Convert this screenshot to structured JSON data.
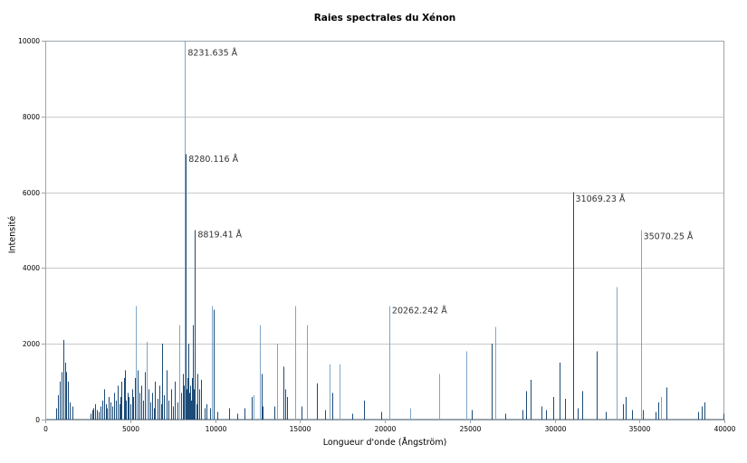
{
  "chart_data": {
    "type": "bar",
    "title": "Raies spectrales du Xénon",
    "xlabel": "Longueur d'onde (Ångström)",
    "ylabel": "Intensité",
    "xlim": [
      0,
      40000
    ],
    "ylim": [
      0,
      10000
    ],
    "x_ticks": [
      0,
      5000,
      10000,
      15000,
      20000,
      25000,
      30000,
      35000,
      40000
    ],
    "y_ticks": [
      0,
      2000,
      4000,
      6000,
      8000,
      10000
    ],
    "grid": "horizontal",
    "legend_position": "none",
    "colors": {
      "line_dark": "#1c4b77",
      "line_light": "#7fa6c9",
      "grid": "#c9c9c9",
      "axis": "#9aa5ad",
      "annotation_text": "#333333",
      "background": "#ffffff"
    },
    "annotations": [
      {
        "text": "8231.635 Å",
        "x": 8231.635,
        "y": 9750
      },
      {
        "text": "8280.116 Å",
        "x": 8280.116,
        "y": 6950
      },
      {
        "text": "8819.41 Å",
        "x": 8819.41,
        "y": 4950
      },
      {
        "text": "20262.242 Å",
        "x": 20262.242,
        "y": 2950
      },
      {
        "text": "31069.23 Å",
        "x": 31069.23,
        "y": 5900
      },
      {
        "text": "35070.25 Å",
        "x": 35070.25,
        "y": 4900
      }
    ],
    "series": [
      {
        "name": "raies",
        "point_format": [
          "longueur_onde_angstrom",
          "intensite",
          "teinte"
        ],
        "points": [
          [
            620,
            300,
            "d"
          ],
          [
            740,
            650,
            "d"
          ],
          [
            860,
            1000,
            "d"
          ],
          [
            950,
            1250,
            "d"
          ],
          [
            1070,
            2100,
            "d"
          ],
          [
            1165,
            1500,
            "d"
          ],
          [
            1250,
            1250,
            "d"
          ],
          [
            1340,
            1000,
            "d"
          ],
          [
            1440,
            450,
            "d"
          ],
          [
            1605,
            350,
            "d"
          ],
          [
            2650,
            150,
            "d"
          ],
          [
            2750,
            250,
            "d"
          ],
          [
            2850,
            300,
            "d"
          ],
          [
            2950,
            400,
            "d"
          ],
          [
            3050,
            250,
            "d"
          ],
          [
            3150,
            200,
            "d"
          ],
          [
            3250,
            350,
            "d"
          ],
          [
            3350,
            500,
            "d"
          ],
          [
            3450,
            800,
            "d"
          ],
          [
            3550,
            400,
            "d"
          ],
          [
            3650,
            300,
            "d"
          ],
          [
            3750,
            600,
            "d"
          ],
          [
            3850,
            450,
            "d"
          ],
          [
            3950,
            350,
            "d"
          ],
          [
            4050,
            700,
            "d"
          ],
          [
            4150,
            500,
            "d"
          ],
          [
            4250,
            900,
            "d"
          ],
          [
            4350,
            400,
            "d"
          ],
          [
            4450,
            600,
            "d"
          ],
          [
            4501,
            1000,
            "d"
          ],
          [
            4624,
            1100,
            "d"
          ],
          [
            4671,
            1300,
            "d"
          ],
          [
            4750,
            500,
            "d"
          ],
          [
            4850,
            700,
            "d"
          ],
          [
            4916,
            600,
            "d"
          ],
          [
            5030,
            400,
            "d"
          ],
          [
            5125,
            800,
            "d"
          ],
          [
            5190,
            600,
            "d"
          ],
          [
            5292,
            1100,
            "d"
          ],
          [
            5330,
            3000,
            "l"
          ],
          [
            5419,
            1300,
            "d"
          ],
          [
            5550,
            700,
            "d"
          ],
          [
            5650,
            900,
            "d"
          ],
          [
            5750,
            500,
            "d"
          ],
          [
            5850,
            1250,
            "d"
          ],
          [
            5976,
            2050,
            "l"
          ],
          [
            6100,
            800,
            "d"
          ],
          [
            6180,
            450,
            "d"
          ],
          [
            6280,
            700,
            "d"
          ],
          [
            6380,
            300,
            "d"
          ],
          [
            6470,
            1000,
            "d"
          ],
          [
            6600,
            550,
            "d"
          ],
          [
            6700,
            900,
            "d"
          ],
          [
            6800,
            400,
            "d"
          ],
          [
            6882,
            2000,
            "d"
          ],
          [
            7000,
            650,
            "d"
          ],
          [
            7120,
            1300,
            "d"
          ],
          [
            7250,
            500,
            "d"
          ],
          [
            7390,
            800,
            "d"
          ],
          [
            7500,
            350,
            "d"
          ],
          [
            7650,
            1000,
            "d"
          ],
          [
            7790,
            450,
            "d"
          ],
          [
            7887,
            2500,
            "l"
          ],
          [
            8000,
            700,
            "d"
          ],
          [
            8100,
            1200,
            "d"
          ],
          [
            8170,
            900,
            "d"
          ],
          [
            8231.635,
            10000,
            "l"
          ],
          [
            8266,
            1500,
            "d"
          ],
          [
            8280.116,
            7000,
            "d"
          ],
          [
            8320,
            800,
            "d"
          ],
          [
            8347,
            1100,
            "d"
          ],
          [
            8409,
            2000,
            "d"
          ],
          [
            8460,
            700,
            "d"
          ],
          [
            8530,
            900,
            "d"
          ],
          [
            8576,
            500,
            "d"
          ],
          [
            8648,
            1100,
            "d"
          ],
          [
            8693,
            2500,
            "d"
          ],
          [
            8739,
            800,
            "d"
          ],
          [
            8819.41,
            5000,
            "d"
          ],
          [
            8900,
            400,
            "d"
          ],
          [
            8952,
            1200,
            "d"
          ],
          [
            9045,
            800,
            "d"
          ],
          [
            9162,
            1050,
            "d"
          ],
          [
            9380,
            300,
            "d"
          ],
          [
            9513,
            400,
            "d"
          ],
          [
            9685,
            300,
            "d"
          ],
          [
            9799.7,
            3000,
            "l"
          ],
          [
            9923.19,
            2900,
            "d"
          ],
          [
            10133,
            200,
            "d"
          ],
          [
            10838,
            300,
            "d"
          ],
          [
            11290,
            150,
            "d"
          ],
          [
            11742,
            300,
            "d"
          ],
          [
            12180,
            600,
            "d"
          ],
          [
            12257,
            650,
            "l"
          ],
          [
            12623,
            2500,
            "l"
          ],
          [
            12720,
            1200,
            "d"
          ],
          [
            12790,
            350,
            "d"
          ],
          [
            13480,
            350,
            "d"
          ],
          [
            13657,
            2000,
            "l"
          ],
          [
            14044,
            1400,
            "d"
          ],
          [
            14142,
            800,
            "d"
          ],
          [
            14240,
            600,
            "d"
          ],
          [
            14732.8,
            3000,
            "l"
          ],
          [
            15100,
            350,
            "d"
          ],
          [
            15418,
            2500,
            "l"
          ],
          [
            15980,
            950,
            "d"
          ],
          [
            16480,
            250,
            "d"
          ],
          [
            16728,
            1450,
            "l"
          ],
          [
            16900,
            700,
            "d"
          ],
          [
            17325,
            1450,
            "l"
          ],
          [
            18100,
            150,
            "d"
          ],
          [
            18788,
            500,
            "d"
          ],
          [
            19800,
            200,
            "d"
          ],
          [
            20262.242,
            3000,
            "l"
          ],
          [
            21470,
            300,
            "l"
          ],
          [
            23193,
            1200,
            "l"
          ],
          [
            24825,
            1800,
            "l"
          ],
          [
            25130,
            250,
            "d"
          ],
          [
            26269,
            2000,
            "d"
          ],
          [
            26511,
            2450,
            "l"
          ],
          [
            27100,
            150,
            "d"
          ],
          [
            28100,
            250,
            "d"
          ],
          [
            28300,
            750,
            "d"
          ],
          [
            28583,
            1050,
            "d"
          ],
          [
            29200,
            350,
            "d"
          ],
          [
            29500,
            250,
            "d"
          ],
          [
            29900,
            600,
            "d"
          ],
          [
            30270,
            1500,
            "d"
          ],
          [
            30600,
            550,
            "d"
          ],
          [
            31069.23,
            6000,
            "d"
          ],
          [
            31350,
            300,
            "d"
          ],
          [
            31600,
            750,
            "d"
          ],
          [
            32500,
            1800,
            "d"
          ],
          [
            33000,
            200,
            "d"
          ],
          [
            33666,
            3500,
            "l"
          ],
          [
            34014,
            400,
            "d"
          ],
          [
            34200,
            600,
            "d"
          ],
          [
            34560,
            250,
            "d"
          ],
          [
            35070.25,
            5000,
            "l"
          ],
          [
            35200,
            250,
            "d"
          ],
          [
            35950,
            200,
            "d"
          ],
          [
            36090,
            450,
            "d"
          ],
          [
            36265,
            600,
            "l"
          ],
          [
            36590,
            850,
            "d"
          ],
          [
            38450,
            200,
            "d"
          ],
          [
            38686,
            350,
            "d"
          ],
          [
            38800,
            450,
            "d"
          ],
          [
            39950,
            150,
            "d"
          ]
        ]
      }
    ]
  }
}
